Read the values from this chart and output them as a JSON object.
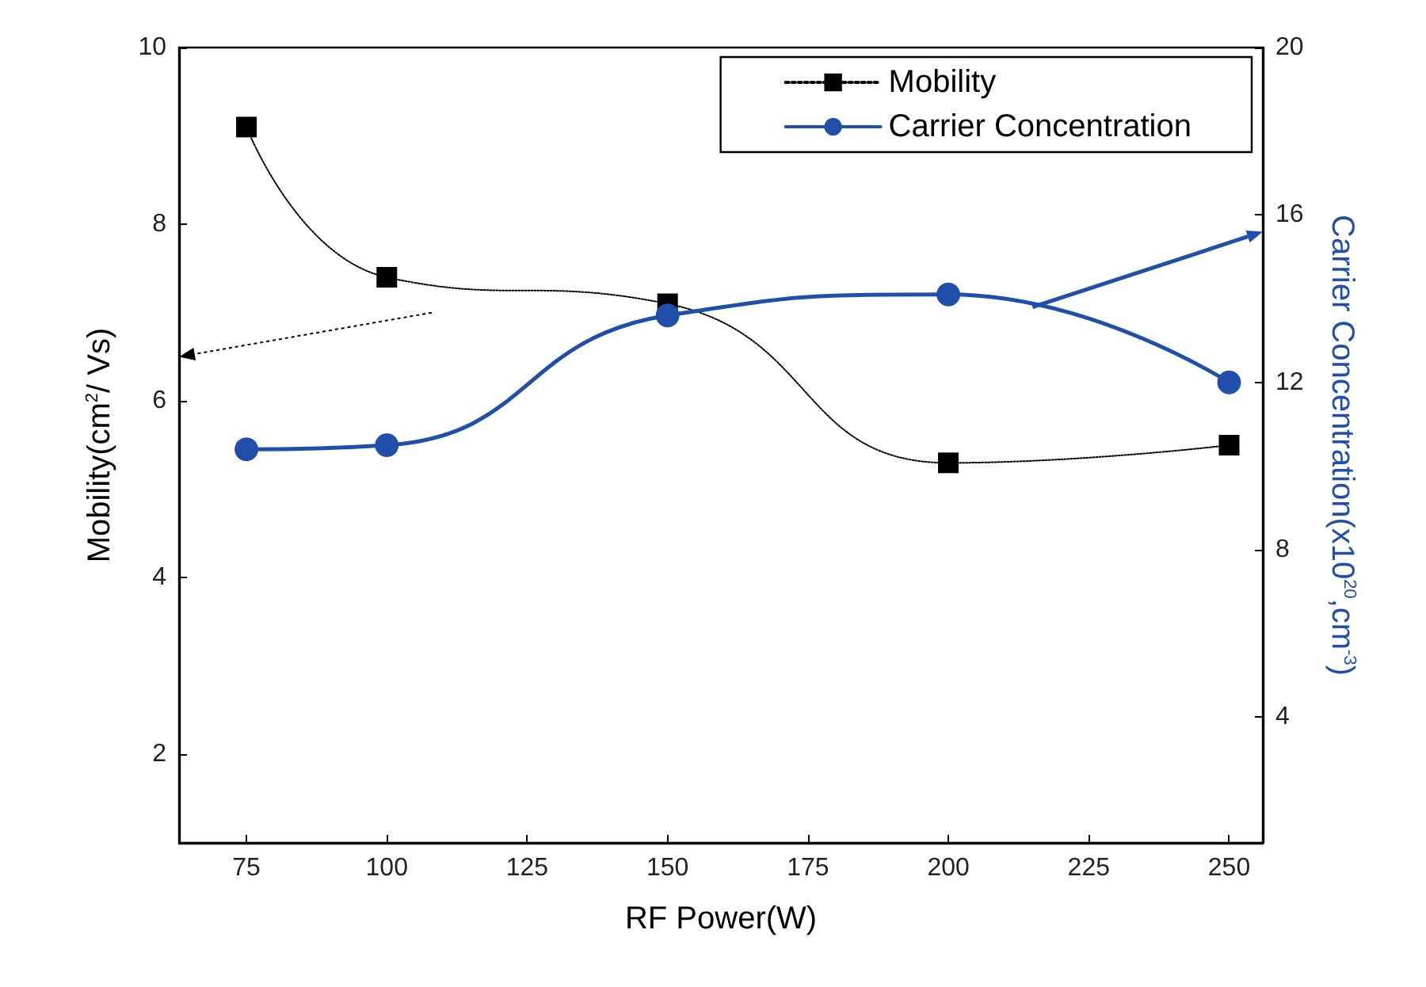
{
  "chart_data": {
    "type": "line",
    "xlabel": "RF Power(W)",
    "ylabel": "Mobility(cm$^{2}$/ Vs)",
    "y2label": "Carrier Concentration(x10$^{20}$,cm$^{-3}$)",
    "x": [
      75,
      100,
      150,
      200,
      250
    ],
    "series": [
      {
        "name": "Mobility",
        "color": "#000000",
        "values": [
          9.1,
          7.4,
          7.1,
          5.3,
          5.5
        ],
        "marker": "square",
        "line_style": "dotted"
      },
      {
        "name": "Carrier Concentration",
        "color": "#1f4fa8",
        "values": [
          10.4,
          10.5,
          13.6,
          14.1,
          12.0
        ],
        "marker": "circle",
        "line_style": "solid",
        "axis": "y2"
      }
    ],
    "xlim": [
      63,
      256
    ],
    "xticks": [
      75,
      100,
      125,
      150,
      175,
      200,
      225,
      250
    ],
    "ylim": [
      1,
      10
    ],
    "yticks": [
      2,
      4,
      6,
      8,
      10
    ],
    "y2lim": [
      1,
      20
    ],
    "y2ticks": [
      4,
      8,
      12,
      16,
      20
    ],
    "grid": false,
    "legend": "top right"
  }
}
